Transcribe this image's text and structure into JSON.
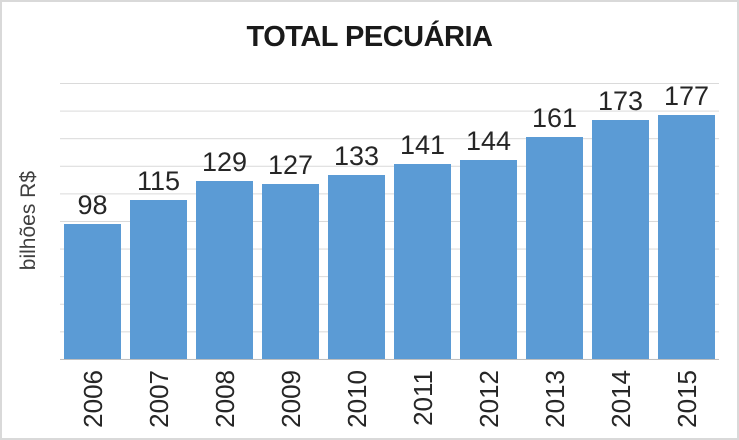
{
  "chart_data": {
    "type": "bar",
    "title": "TOTAL PECUÁRIA",
    "ylabel": "bilhões R$",
    "xlabel": "",
    "categories": [
      "2006",
      "2007",
      "2008",
      "2009",
      "2010",
      "2011",
      "2012",
      "2013",
      "2014",
      "2015"
    ],
    "values": [
      98,
      115,
      129,
      127,
      133,
      141,
      144,
      161,
      173,
      177
    ],
    "data_labels_visible": true,
    "ylim": [
      0,
      200
    ],
    "gridline_step": 20,
    "grid": true,
    "y_tick_labels_visible": false,
    "legend_position": "none",
    "colors": {
      "bar": "#5b9bd5",
      "gridline": "#d9d9d9",
      "axis_line": "#bfbfbf",
      "title_text": "#1a1a1a",
      "label_text": "#262626",
      "frame_border": "#d9d9d9"
    }
  }
}
